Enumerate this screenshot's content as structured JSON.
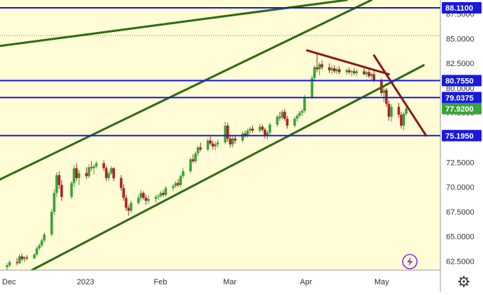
{
  "chart_data": {
    "type": "candlestick",
    "title": "",
    "xlabel": "",
    "ylabel": "",
    "ylim": [
      61.6,
      88.9
    ],
    "y_ticks": [
      "62.5000",
      "65.0000",
      "67.5000",
      "70.0000",
      "72.5000",
      "75.0000",
      "77.5000",
      "80.0000",
      "82.5000",
      "85.0000",
      "87.5000"
    ],
    "x_ticks": [
      {
        "label": "Dec",
        "date": "2022-12-01"
      },
      {
        "label": "2023",
        "date": "2023-01-01"
      },
      {
        "label": "Feb",
        "date": "2023-02-01"
      },
      {
        "label": "Mar",
        "date": "2023-03-01"
      },
      {
        "label": "Apr",
        "date": "2023-04-01"
      },
      {
        "label": "May",
        "date": "2023-05-01"
      }
    ],
    "price_levels": [
      {
        "label": "88.1100",
        "value": 88.11
      },
      {
        "label": "80.7550",
        "value": 80.755
      },
      {
        "label": "79.0375",
        "value": 79.0375
      },
      {
        "label": "75.1950",
        "value": 75.195
      }
    ],
    "current_price": {
      "label": "77.9200",
      "value": 77.92
    },
    "dotted_level": 85.3,
    "trendlines": [
      {
        "color": "#2e6b12",
        "points": [
          [
            "2022-11-28",
            84.25
          ],
          [
            "2023-04-17",
            88.9
          ]
        ]
      },
      {
        "color": "#2e6b12",
        "points": [
          [
            "2022-11-28",
            70.75
          ],
          [
            "2023-04-27",
            88.9
          ]
        ]
      },
      {
        "color": "#2e6b12",
        "points": [
          [
            "2022-12-11",
            61.6
          ],
          [
            "2023-05-18",
            82.3
          ]
        ]
      },
      {
        "color": "#8b1a1a",
        "points": [
          [
            "2023-04-01",
            83.8
          ],
          [
            "2023-05-04",
            81.4
          ]
        ]
      },
      {
        "color": "#8b1a1a",
        "points": [
          [
            "2023-04-28",
            83.3
          ],
          [
            "2023-05-19",
            75.2
          ]
        ]
      }
    ],
    "candles": [
      [
        "2022-12-01",
        61.9,
        62.3,
        61.4,
        62.1
      ],
      [
        "2022-12-02",
        62.1,
        62.6,
        61.9,
        62.4
      ],
      [
        "2022-12-05",
        62.4,
        62.8,
        62.1,
        62.3
      ],
      [
        "2022-12-06",
        62.3,
        63.2,
        62.2,
        63.0
      ],
      [
        "2022-12-07",
        63.0,
        63.3,
        62.5,
        62.7
      ],
      [
        "2022-12-08",
        62.7,
        63.0,
        62.4,
        62.9
      ],
      [
        "2022-12-09",
        62.9,
        63.1,
        62.6,
        62.8
      ],
      [
        "2022-12-12",
        62.8,
        63.3,
        62.7,
        63.2
      ],
      [
        "2022-12-13",
        63.2,
        64.0,
        63.0,
        63.8
      ],
      [
        "2022-12-14",
        63.8,
        64.3,
        63.6,
        64.1
      ],
      [
        "2022-12-15",
        64.1,
        64.8,
        63.9,
        64.6
      ],
      [
        "2022-12-16",
        64.6,
        65.4,
        64.4,
        65.2
      ],
      [
        "2022-12-19",
        65.2,
        67.8,
        65.0,
        67.5
      ],
      [
        "2022-12-20",
        67.5,
        69.8,
        67.2,
        69.4
      ],
      [
        "2022-12-21",
        69.4,
        71.5,
        69.0,
        71.2
      ],
      [
        "2022-12-22",
        71.2,
        71.6,
        69.8,
        70.2
      ],
      [
        "2022-12-23",
        70.2,
        70.7,
        68.6,
        69.0
      ],
      [
        "2022-12-27",
        69.0,
        70.6,
        68.8,
        70.4
      ],
      [
        "2022-12-28",
        70.4,
        72.2,
        70.0,
        71.9
      ],
      [
        "2022-12-29",
        71.9,
        72.4,
        70.6,
        70.9
      ],
      [
        "2022-12-30",
        70.9,
        71.7,
        70.2,
        71.4
      ],
      [
        "2023-01-02",
        71.4,
        72.0,
        70.8,
        71.1
      ],
      [
        "2023-01-03",
        71.1,
        72.3,
        70.9,
        72.0
      ],
      [
        "2023-01-04",
        72.0,
        72.6,
        71.6,
        71.9
      ],
      [
        "2023-01-05",
        71.9,
        72.3,
        71.3,
        72.1
      ],
      [
        "2023-01-06",
        72.1,
        72.6,
        71.9,
        72.4
      ],
      [
        "2023-01-09",
        72.4,
        72.7,
        71.6,
        71.9
      ],
      [
        "2023-01-10",
        71.9,
        72.1,
        70.6,
        70.9
      ],
      [
        "2023-01-11",
        70.9,
        71.6,
        70.6,
        71.4
      ],
      [
        "2023-01-12",
        71.4,
        72.1,
        71.2,
        71.9
      ],
      [
        "2023-01-13",
        71.9,
        72.0,
        70.6,
        70.9
      ],
      [
        "2023-01-16",
        70.9,
        71.2,
        69.6,
        69.9
      ],
      [
        "2023-01-17",
        69.9,
        70.3,
        68.6,
        68.9
      ],
      [
        "2023-01-18",
        68.9,
        69.2,
        67.6,
        67.9
      ],
      [
        "2023-01-19",
        67.9,
        68.2,
        67.1,
        67.6
      ],
      [
        "2023-01-20",
        67.6,
        68.6,
        67.4,
        68.4
      ],
      [
        "2023-01-23",
        68.4,
        69.2,
        68.2,
        68.9
      ],
      [
        "2023-01-24",
        68.9,
        69.7,
        68.6,
        69.4
      ],
      [
        "2023-01-25",
        69.4,
        69.6,
        68.7,
        68.9
      ],
      [
        "2023-01-26",
        68.9,
        69.2,
        68.2,
        68.6
      ],
      [
        "2023-01-27",
        68.6,
        69.1,
        68.3,
        68.8
      ],
      [
        "2023-01-30",
        68.8,
        69.2,
        68.4,
        69.0
      ],
      [
        "2023-01-31",
        69.0,
        69.3,
        68.7,
        69.1
      ],
      [
        "2023-02-01",
        69.1,
        69.6,
        68.9,
        69.4
      ],
      [
        "2023-02-02",
        69.4,
        69.7,
        69.0,
        69.2
      ],
      [
        "2023-02-03",
        69.2,
        70.1,
        69.0,
        69.9
      ],
      [
        "2023-02-06",
        69.9,
        70.3,
        69.6,
        70.1
      ],
      [
        "2023-02-07",
        70.1,
        70.6,
        69.9,
        70.4
      ],
      [
        "2023-02-08",
        70.4,
        70.8,
        70.0,
        70.2
      ],
      [
        "2023-02-09",
        70.2,
        71.3,
        70.0,
        71.1
      ],
      [
        "2023-02-10",
        71.1,
        71.9,
        70.9,
        71.6
      ],
      [
        "2023-02-13",
        71.6,
        73.0,
        71.4,
        72.8
      ],
      [
        "2023-02-14",
        72.8,
        73.3,
        72.4,
        72.6
      ],
      [
        "2023-02-15",
        72.6,
        73.6,
        72.4,
        73.4
      ],
      [
        "2023-02-16",
        73.4,
        74.2,
        73.1,
        74.0
      ],
      [
        "2023-02-17",
        74.0,
        74.5,
        73.6,
        73.8
      ],
      [
        "2023-02-20",
        73.8,
        74.9,
        73.6,
        74.7
      ],
      [
        "2023-02-21",
        74.7,
        75.1,
        74.2,
        74.4
      ],
      [
        "2023-02-22",
        74.4,
        74.7,
        73.8,
        74.1
      ],
      [
        "2023-02-23",
        74.1,
        74.6,
        73.7,
        74.3
      ],
      [
        "2023-02-24",
        74.3,
        74.8,
        74.0,
        74.5
      ],
      [
        "2023-02-27",
        74.5,
        76.6,
        74.3,
        76.2
      ],
      [
        "2023-02-28",
        76.2,
        76.5,
        74.6,
        74.9
      ],
      [
        "2023-03-01",
        74.9,
        75.3,
        74.0,
        74.3
      ],
      [
        "2023-03-02",
        74.3,
        75.1,
        74.0,
        74.9
      ],
      [
        "2023-03-03",
        74.9,
        75.3,
        74.4,
        74.7
      ],
      [
        "2023-03-06",
        74.7,
        75.6,
        74.5,
        75.4
      ],
      [
        "2023-03-07",
        75.4,
        75.7,
        75.0,
        75.2
      ],
      [
        "2023-03-08",
        75.2,
        75.9,
        75.0,
        75.7
      ],
      [
        "2023-03-09",
        75.7,
        76.1,
        75.4,
        75.9
      ],
      [
        "2023-03-10",
        75.9,
        76.2,
        75.5,
        75.7
      ],
      [
        "2023-03-13",
        75.7,
        76.4,
        75.5,
        76.1
      ],
      [
        "2023-03-14",
        76.1,
        76.3,
        75.6,
        75.8
      ],
      [
        "2023-03-15",
        75.8,
        76.0,
        74.9,
        75.2
      ],
      [
        "2023-03-16",
        75.2,
        75.7,
        74.8,
        75.5
      ],
      [
        "2023-03-17",
        75.5,
        76.5,
        75.3,
        76.3
      ],
      [
        "2023-03-20",
        76.3,
        77.3,
        76.1,
        77.1
      ],
      [
        "2023-03-21",
        77.1,
        77.6,
        76.7,
        77.0
      ],
      [
        "2023-03-22",
        77.0,
        77.8,
        76.8,
        77.6
      ],
      [
        "2023-03-23",
        77.6,
        77.9,
        76.7,
        76.9
      ],
      [
        "2023-03-24",
        76.9,
        77.2,
        75.9,
        76.2
      ],
      [
        "2023-03-27",
        76.2,
        77.1,
        76.0,
        76.9
      ],
      [
        "2023-03-28",
        76.9,
        77.4,
        76.6,
        77.2
      ],
      [
        "2023-03-29",
        77.2,
        77.7,
        77.0,
        77.5
      ],
      [
        "2023-03-30",
        77.5,
        77.9,
        77.2,
        77.7
      ],
      [
        "2023-03-31",
        77.7,
        79.3,
        77.5,
        79.1
      ],
      [
        "2023-04-03",
        79.1,
        81.3,
        78.9,
        81.0
      ],
      [
        "2023-04-04",
        81.0,
        82.3,
        80.7,
        82.1
      ],
      [
        "2023-04-05",
        82.1,
        83.6,
        81.6,
        81.9
      ],
      [
        "2023-04-06",
        81.9,
        82.6,
        81.3,
        82.4
      ],
      [
        "2023-04-07",
        82.4,
        82.8,
        81.9,
        82.1
      ],
      [
        "2023-04-10",
        82.1,
        82.5,
        81.5,
        81.8
      ],
      [
        "2023-04-11",
        81.8,
        82.3,
        81.4,
        82.0
      ],
      [
        "2023-04-12",
        82.0,
        82.3,
        81.5,
        81.7
      ],
      [
        "2023-04-13",
        81.7,
        82.1,
        81.4,
        81.9
      ],
      [
        "2023-04-14",
        81.9,
        82.2,
        81.4,
        81.6
      ],
      [
        "2023-04-17",
        81.6,
        82.0,
        81.3,
        81.8
      ],
      [
        "2023-04-18",
        81.8,
        82.1,
        81.4,
        81.6
      ],
      [
        "2023-04-19",
        81.6,
        81.9,
        81.2,
        81.7
      ],
      [
        "2023-04-20",
        81.7,
        82.0,
        81.3,
        81.5
      ],
      [
        "2023-04-21",
        81.5,
        81.9,
        81.2,
        81.7
      ],
      [
        "2023-04-24",
        81.7,
        82.0,
        81.3,
        81.4
      ],
      [
        "2023-04-25",
        81.4,
        81.8,
        81.1,
        81.6
      ],
      [
        "2023-04-26",
        81.6,
        81.9,
        81.0,
        81.2
      ],
      [
        "2023-04-27",
        81.2,
        81.6,
        80.7,
        81.4
      ],
      [
        "2023-04-28",
        81.4,
        81.8,
        80.6,
        80.8
      ],
      [
        "2023-05-01",
        80.8,
        81.0,
        79.2,
        79.5
      ],
      [
        "2023-05-02",
        79.5,
        80.1,
        78.6,
        79.8
      ],
      [
        "2023-05-03",
        79.8,
        80.0,
        78.1,
        78.4
      ],
      [
        "2023-05-04",
        78.4,
        78.7,
        76.7,
        77.1
      ],
      [
        "2023-05-05",
        77.1,
        78.4,
        76.6,
        78.1
      ],
      [
        "2023-05-08",
        78.1,
        78.5,
        77.0,
        77.3
      ],
      [
        "2023-05-09",
        77.3,
        77.6,
        75.9,
        76.2
      ],
      [
        "2023-05-10",
        76.2,
        77.6,
        75.7,
        77.4
      ],
      [
        "2023-05-11",
        77.4,
        78.3,
        77.2,
        77.92
      ]
    ]
  },
  "colors": {
    "background": "#fffcd6",
    "up_candle": "#3aa33a",
    "down_candle": "#b22222",
    "level_line": "#1a1add",
    "trend_green": "#2e6b12",
    "trend_red": "#8b1a1a",
    "current_tag": "#3aa33a"
  },
  "icons": {
    "bolt": "lightning-bolt-icon",
    "settings": "gear-icon"
  }
}
